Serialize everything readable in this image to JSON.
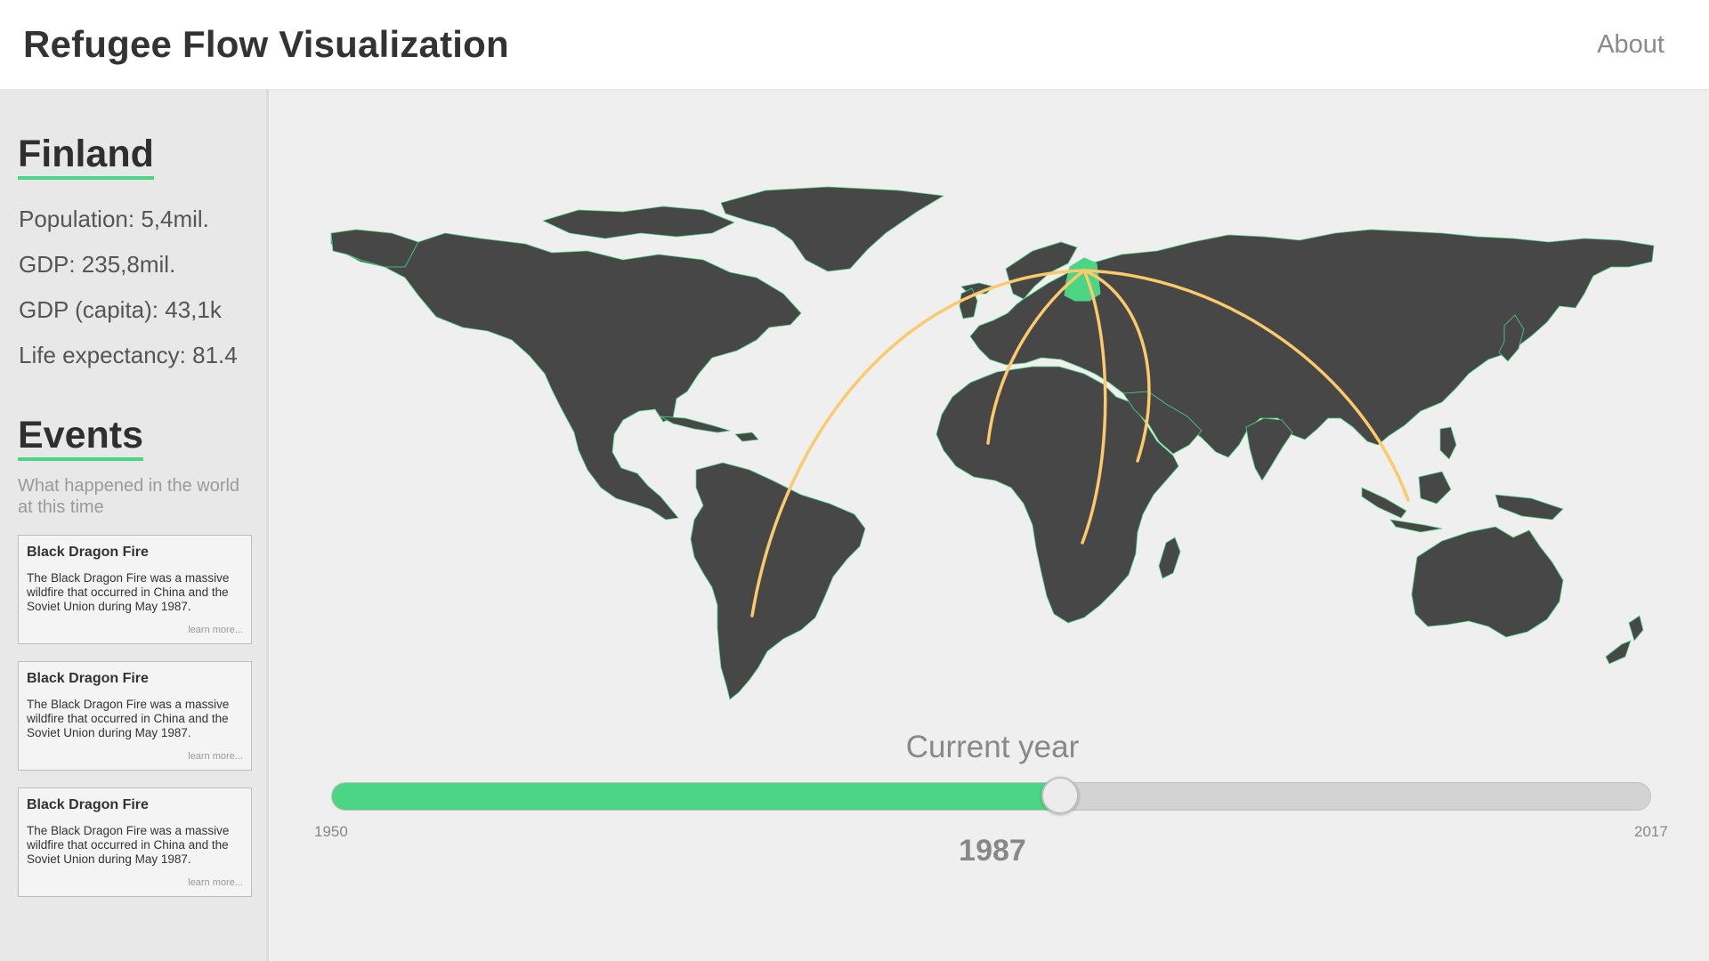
{
  "header": {
    "title": "Refugee Flow Visualization",
    "about_label": "About"
  },
  "country": {
    "name": "Finland",
    "stats": [
      "Population: 5,4mil.",
      "GDP: 235,8mil.",
      "GDP (capita): 43,1k",
      "Life expectancy: 81.4"
    ]
  },
  "events": {
    "title": "Events",
    "subtitle": "What happened in the world at this time",
    "items": [
      {
        "title": "Black Dragon Fire",
        "description": "The Black Dragon Fire was a massive wildfire that occurred in China and the Soviet Union during May 1987.",
        "more": "learn more..."
      },
      {
        "title": "Black Dragon Fire",
        "description": "The Black Dragon Fire was a massive wildfire that occurred in China and the Soviet Union during May 1987.",
        "more": "learn more..."
      },
      {
        "title": "Black Dragon Fire",
        "description": "The Black Dragon Fire was a massive wildfire that occurred in China and the Soviet Union during May 1987.",
        "more": "learn more..."
      }
    ]
  },
  "map": {
    "selected_country": "Finland",
    "land_color": "#474747",
    "border_color": "#4cd584",
    "highlight_color": "#4cd584",
    "flow_color": "#fcc96b",
    "flows_to": [
      "Argentina",
      "West Africa",
      "Southern Africa",
      "Horn of Africa",
      "Southeast Asia"
    ]
  },
  "timeline": {
    "label": "Current year",
    "min": "1950",
    "max": "2017",
    "current": "1987",
    "fill_color": "#4cd584"
  }
}
